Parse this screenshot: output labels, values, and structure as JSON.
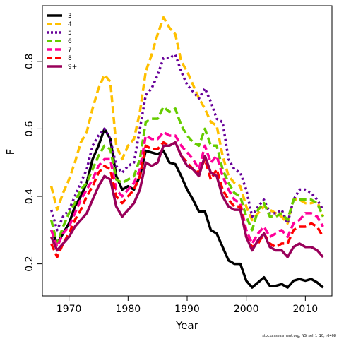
{
  "chart_data": {
    "type": "line",
    "title": "",
    "xlabel": "Year",
    "ylabel": "F",
    "xlim": [
      1965.5,
      2014.5
    ],
    "ylim": [
      0.105,
      0.965
    ],
    "xticks": [
      1970,
      1980,
      1990,
      2000,
      2010
    ],
    "yticks": [
      0.2,
      0.4,
      0.6,
      0.8
    ],
    "ytick_labels": [
      "0.2",
      "0.4",
      "0.6",
      "0.8"
    ],
    "grid": false,
    "legend_position": "top-left",
    "x": [
      1967,
      1968,
      1969,
      1970,
      1971,
      1972,
      1973,
      1974,
      1975,
      1976,
      1977,
      1978,
      1979,
      1980,
      1981,
      1982,
      1983,
      1984,
      1985,
      1986,
      1987,
      1988,
      1989,
      1990,
      1991,
      1992,
      1993,
      1994,
      1995,
      1996,
      1997,
      1998,
      1999,
      2000,
      2001,
      2002,
      2003,
      2004,
      2005,
      2006,
      2007,
      2008,
      2009,
      2010,
      2011,
      2012,
      2013
    ],
    "series": [
      {
        "name": "3",
        "color": "#000000",
        "dash": "solid",
        "values": [
          0.3,
          0.26,
          0.29,
          0.32,
          0.37,
          0.4,
          0.44,
          0.51,
          0.55,
          0.6,
          0.57,
          0.46,
          0.42,
          0.43,
          0.42,
          0.46,
          0.535,
          0.53,
          0.525,
          0.535,
          0.5,
          0.495,
          0.46,
          0.42,
          0.39,
          0.355,
          0.355,
          0.3,
          0.29,
          0.25,
          0.21,
          0.2,
          0.2,
          0.15,
          0.13,
          0.145,
          0.16,
          0.135,
          0.135,
          0.14,
          0.13,
          0.15,
          0.155,
          0.15,
          0.155,
          0.145,
          0.13
        ]
      },
      {
        "name": "4",
        "color": "#FFC000",
        "dash": "dashed",
        "values": [
          0.43,
          0.36,
          0.41,
          0.45,
          0.5,
          0.56,
          0.59,
          0.66,
          0.72,
          0.76,
          0.74,
          0.55,
          0.51,
          0.55,
          0.57,
          0.65,
          0.77,
          0.82,
          0.88,
          0.93,
          0.9,
          0.88,
          0.8,
          0.77,
          0.73,
          0.69,
          0.66,
          0.62,
          0.61,
          0.52,
          0.46,
          0.44,
          0.43,
          0.37,
          0.33,
          0.35,
          0.37,
          0.36,
          0.35,
          0.34,
          0.32,
          0.39,
          0.39,
          0.38,
          0.38,
          0.385,
          0.34
        ]
      },
      {
        "name": "5",
        "color": "#660099",
        "dash": "dotted",
        "values": [
          0.36,
          0.3,
          0.34,
          0.36,
          0.4,
          0.44,
          0.48,
          0.55,
          0.58,
          0.6,
          0.57,
          0.49,
          0.47,
          0.49,
          0.5,
          0.6,
          0.7,
          0.72,
          0.76,
          0.81,
          0.81,
          0.82,
          0.77,
          0.73,
          0.71,
          0.69,
          0.72,
          0.68,
          0.63,
          0.62,
          0.51,
          0.48,
          0.47,
          0.42,
          0.34,
          0.37,
          0.39,
          0.35,
          0.35,
          0.36,
          0.32,
          0.39,
          0.42,
          0.42,
          0.41,
          0.39,
          0.36
        ]
      },
      {
        "name": "6",
        "color": "#66CC00",
        "dash": "dashed",
        "values": [
          0.33,
          0.26,
          0.31,
          0.35,
          0.38,
          0.42,
          0.44,
          0.48,
          0.52,
          0.55,
          0.54,
          0.45,
          0.44,
          0.45,
          0.46,
          0.51,
          0.62,
          0.63,
          0.63,
          0.665,
          0.65,
          0.66,
          0.61,
          0.58,
          0.56,
          0.55,
          0.6,
          0.55,
          0.55,
          0.48,
          0.44,
          0.41,
          0.4,
          0.34,
          0.3,
          0.36,
          0.38,
          0.34,
          0.34,
          0.35,
          0.33,
          0.39,
          0.39,
          0.39,
          0.39,
          0.38,
          0.34
        ]
      },
      {
        "name": "7",
        "color": "#FF0099",
        "dash": "dashed",
        "values": [
          0.3,
          0.25,
          0.29,
          0.31,
          0.35,
          0.39,
          0.42,
          0.45,
          0.49,
          0.51,
          0.51,
          0.42,
          0.4,
          0.42,
          0.44,
          0.48,
          0.58,
          0.57,
          0.57,
          0.59,
          0.58,
          0.58,
          0.55,
          0.53,
          0.51,
          0.48,
          0.55,
          0.5,
          0.52,
          0.46,
          0.42,
          0.39,
          0.38,
          0.3,
          0.26,
          0.29,
          0.31,
          0.28,
          0.29,
          0.3,
          0.28,
          0.32,
          0.33,
          0.35,
          0.35,
          0.34,
          0.31
        ]
      },
      {
        "name": "8",
        "color": "#FF0000",
        "dash": "dashed",
        "values": [
          0.26,
          0.22,
          0.26,
          0.29,
          0.33,
          0.36,
          0.4,
          0.43,
          0.47,
          0.49,
          0.48,
          0.4,
          0.38,
          0.4,
          0.42,
          0.46,
          0.55,
          0.54,
          0.54,
          0.56,
          0.55,
          0.56,
          0.52,
          0.5,
          0.48,
          0.47,
          0.51,
          0.45,
          0.48,
          0.42,
          0.39,
          0.37,
          0.37,
          0.28,
          0.25,
          0.26,
          0.29,
          0.26,
          0.25,
          0.26,
          0.26,
          0.3,
          0.31,
          0.31,
          0.32,
          0.31,
          0.28
        ]
      },
      {
        "name": "9+",
        "color": "#99005A",
        "dash": "solid",
        "values": [
          0.28,
          0.24,
          0.26,
          0.28,
          0.31,
          0.33,
          0.35,
          0.39,
          0.43,
          0.46,
          0.45,
          0.37,
          0.34,
          0.36,
          0.38,
          0.42,
          0.5,
          0.49,
          0.5,
          0.55,
          0.55,
          0.56,
          0.52,
          0.49,
          0.48,
          0.46,
          0.52,
          0.47,
          0.46,
          0.4,
          0.37,
          0.36,
          0.36,
          0.28,
          0.24,
          0.27,
          0.29,
          0.25,
          0.24,
          0.24,
          0.22,
          0.25,
          0.26,
          0.25,
          0.25,
          0.24,
          0.22
        ]
      }
    ]
  },
  "footer": {
    "credit": "stockassessment.org, NS_sel_1_10, r6408"
  }
}
